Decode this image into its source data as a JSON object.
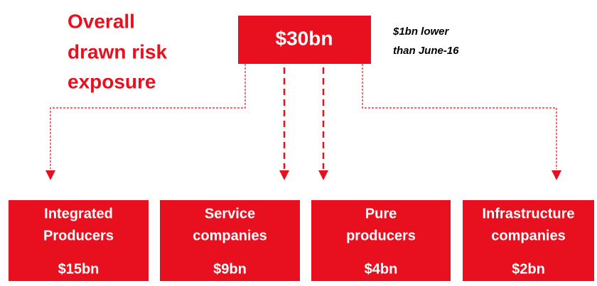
{
  "title": [
    "Overall",
    "drawn risk",
    "exposure"
  ],
  "root": {
    "value": "$30bn",
    "note": [
      "$1bn lower",
      "than June-16"
    ]
  },
  "nodes": [
    {
      "label": [
        "Integrated",
        "Producers"
      ],
      "value": "$15bn"
    },
    {
      "label": [
        "Service",
        "companies"
      ],
      "value": "$9bn"
    },
    {
      "label": [
        "Pure",
        "producers"
      ],
      "value": "$4bn"
    },
    {
      "label": [
        "Infrastructure",
        "companies"
      ],
      "value": "$2bn"
    }
  ]
}
